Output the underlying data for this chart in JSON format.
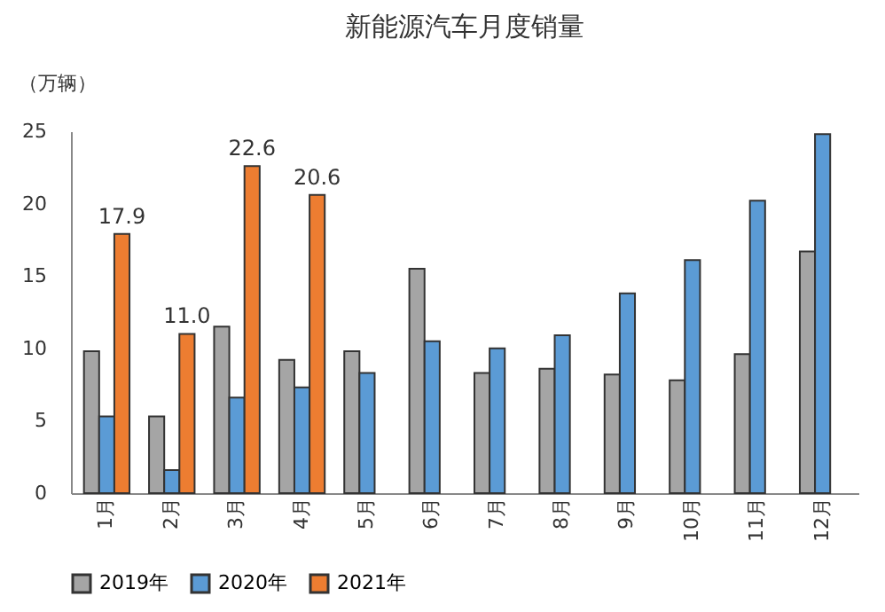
{
  "chart_data": {
    "type": "bar",
    "title": "新能源汽车月度销量",
    "ylabel": "（万辆）",
    "categories": [
      "1月",
      "2月",
      "3月",
      "4月",
      "5月",
      "6月",
      "7月",
      "8月",
      "9月",
      "10月",
      "11月",
      "12月"
    ],
    "series": [
      {
        "name": "2019年",
        "color": "#a5a5a5",
        "values": [
          9.8,
          5.3,
          11.5,
          9.2,
          9.8,
          15.5,
          8.3,
          8.6,
          8.2,
          7.8,
          9.6,
          16.7
        ]
      },
      {
        "name": "2020年",
        "color": "#5b9bd5",
        "values": [
          5.3,
          1.6,
          6.6,
          7.3,
          8.3,
          10.5,
          10.0,
          10.9,
          13.8,
          16.1,
          20.2,
          24.8
        ]
      },
      {
        "name": "2021年",
        "color": "#ed7d31",
        "values": [
          17.9,
          11.0,
          22.6,
          20.6,
          null,
          null,
          null,
          null,
          null,
          null,
          null,
          null
        ],
        "value_labels": [
          "17.9",
          "11.0",
          "22.6",
          "20.6",
          null,
          null,
          null,
          null,
          null,
          null,
          null,
          null
        ]
      }
    ],
    "ylim": [
      0,
      25
    ],
    "yticks": [
      0,
      5,
      10,
      15,
      20,
      25
    ],
    "grid": false,
    "legend": "bottom"
  }
}
